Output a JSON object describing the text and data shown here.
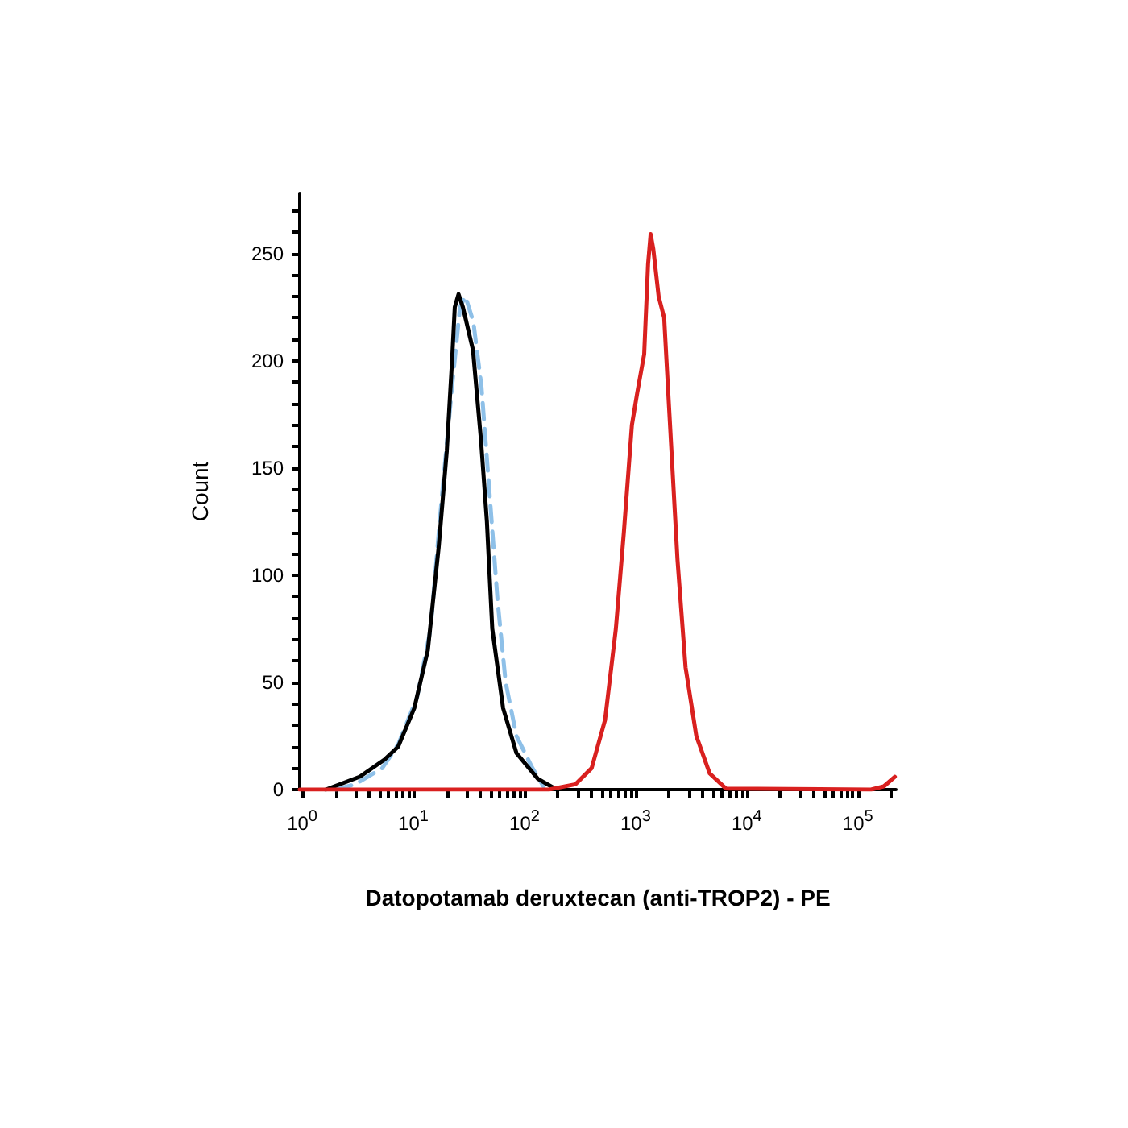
{
  "chart_data": {
    "type": "line",
    "xlabel": "Datopotamab deruxtecan (anti-TROP2) - PE",
    "ylabel": "Count",
    "log": "x",
    "grid": false,
    "marker": "none",
    "xlim": [
      0.95,
      220000
    ],
    "ylim": [
      0,
      278
    ],
    "xticks": [
      {
        "value": 1,
        "label": "10$^{0}$"
      },
      {
        "value": 2,
        "label": null
      },
      {
        "value": 3,
        "label": null
      },
      {
        "value": 4,
        "label": null
      },
      {
        "value": 5,
        "label": null
      },
      {
        "value": 6,
        "label": null
      },
      {
        "value": 7,
        "label": null
      },
      {
        "value": 8,
        "label": null
      },
      {
        "value": 9,
        "label": null
      },
      {
        "value": 10,
        "label": "10$^{1}$"
      },
      {
        "value": 20,
        "label": null
      },
      {
        "value": 30,
        "label": null
      },
      {
        "value": 40,
        "label": null
      },
      {
        "value": 50,
        "label": null
      },
      {
        "value": 60,
        "label": null
      },
      {
        "value": 70,
        "label": null
      },
      {
        "value": 80,
        "label": null
      },
      {
        "value": 90,
        "label": null
      },
      {
        "value": 100,
        "label": "10$^{2}$"
      },
      {
        "value": 200,
        "label": null
      },
      {
        "value": 300,
        "label": null
      },
      {
        "value": 400,
        "label": null
      },
      {
        "value": 500,
        "label": null
      },
      {
        "value": 600,
        "label": null
      },
      {
        "value": 700,
        "label": null
      },
      {
        "value": 800,
        "label": null
      },
      {
        "value": 900,
        "label": null
      },
      {
        "value": 1000,
        "label": "10$^{3}$"
      },
      {
        "value": 2000,
        "label": null
      },
      {
        "value": 3000,
        "label": null
      },
      {
        "value": 4000,
        "label": null
      },
      {
        "value": 5000,
        "label": null
      },
      {
        "value": 6000,
        "label": null
      },
      {
        "value": 7000,
        "label": null
      },
      {
        "value": 8000,
        "label": null
      },
      {
        "value": 9000,
        "label": null
      },
      {
        "value": 10000,
        "label": "10$^{4}$"
      },
      {
        "value": 20000,
        "label": null
      },
      {
        "value": 30000,
        "label": null
      },
      {
        "value": 40000,
        "label": null
      },
      {
        "value": 50000,
        "label": null
      },
      {
        "value": 60000,
        "label": null
      },
      {
        "value": 70000,
        "label": null
      },
      {
        "value": 80000,
        "label": null
      },
      {
        "value": 90000,
        "label": null
      },
      {
        "value": 100000,
        "label": "10$^{5}$"
      },
      {
        "value": 200000,
        "label": null
      }
    ],
    "yticks": [
      0,
      {
        "value": 10,
        "label": null
      },
      {
        "value": 20,
        "label": null
      },
      {
        "value": 30,
        "label": null
      },
      {
        "value": 40,
        "label": null
      },
      50,
      {
        "value": 60,
        "label": null
      },
      {
        "value": 70,
        "label": null
      },
      {
        "value": 80,
        "label": null
      },
      {
        "value": 90,
        "label": null
      },
      100,
      {
        "value": 110,
        "label": null
      },
      {
        "value": 120,
        "label": null
      },
      {
        "value": 130,
        "label": null
      },
      {
        "value": 140,
        "label": null
      },
      150,
      {
        "value": 160,
        "label": null
      },
      {
        "value": 170,
        "label": null
      },
      {
        "value": 180,
        "label": null
      },
      {
        "value": 190,
        "label": null
      },
      200,
      {
        "value": 210,
        "label": null
      },
      {
        "value": 220,
        "label": null
      },
      {
        "value": 230,
        "label": null
      },
      {
        "value": 240,
        "label": null
      },
      250,
      {
        "value": 260,
        "label": null
      },
      {
        "value": 270,
        "label": null
      }
    ],
    "series": [
      {
        "color": "#8ec0e8",
        "line_style": "dashed",
        "x": [
          2,
          3.0,
          5.25,
          7.3,
          10.8,
          14.3,
          17.8,
          22.3,
          26.3,
          29.4,
          34.7,
          41,
          48.5,
          57.3,
          67.7,
          84.7,
          118,
          148
        ],
        "values": [
          0,
          2.5,
          10,
          21,
          43,
          75,
          133,
          188,
          225,
          230,
          218,
          188,
          138,
          88,
          50,
          25,
          10,
          1.5
        ]
      },
      {
        "color": "#000000",
        "line_style": "solid",
        "x": [
          1.63,
          3.3,
          5.5,
          7.3,
          10.2,
          13.5,
          16.9,
          20,
          22.3,
          23.6,
          25.5,
          27.9,
          34.4,
          40.6,
          45.9,
          51.3,
          64.2,
          84.7,
          132,
          195
        ],
        "values": [
          0,
          6,
          14,
          20,
          38,
          65,
          113,
          158,
          200,
          225,
          231,
          225,
          205,
          163,
          125,
          75,
          38,
          17,
          5,
          0
        ]
      },
      {
        "color": "#d9201f",
        "line_style": "solid",
        "x": [
          0.95,
          165,
          288,
          402,
          531,
          664,
          784,
          926,
          1034,
          1194,
          1294,
          1365,
          1443,
          1611,
          1806,
          2015,
          2382,
          2814,
          3517,
          4645,
          6486,
          131000,
          171000,
          215000
        ],
        "values": [
          0,
          0,
          2.5,
          10,
          32.5,
          75,
          120,
          170,
          185,
          203,
          245,
          259,
          252,
          230,
          220,
          175,
          107,
          57,
          25,
          7.5,
          0.5,
          0,
          1.5,
          6
        ]
      }
    ]
  }
}
